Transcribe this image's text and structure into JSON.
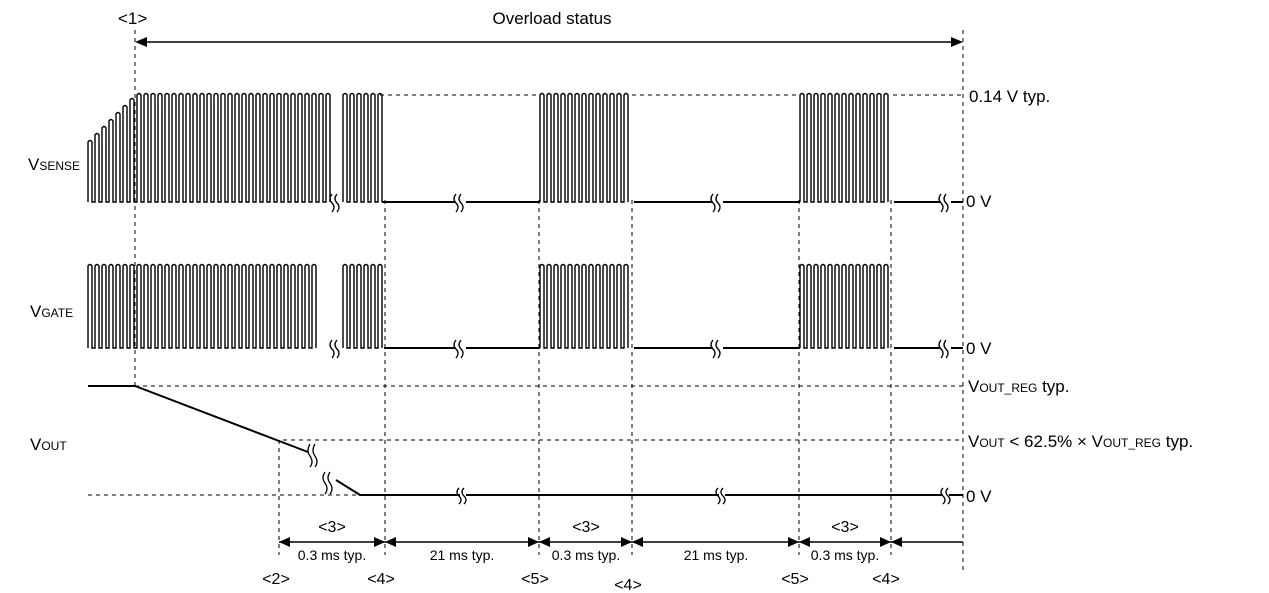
{
  "title": "Overload status",
  "markers": {
    "m1": "<1>",
    "m2": "<2>",
    "m3": "<3>",
    "m4": "<4>",
    "m5": "<5>"
  },
  "signals": {
    "vsense": {
      "main": "V",
      "sub": "SENSE"
    },
    "vgate": {
      "main": "V",
      "sub": "GATE"
    },
    "vout": {
      "main": "V",
      "sub": "OUT"
    }
  },
  "levels": {
    "vsense_high": "0.14 V typ.",
    "zero": "0 V",
    "vout_reg_main": "V",
    "vout_reg_sub": "OUT_REG",
    "vout_reg_suffix": " typ.",
    "threshold_main": "V",
    "threshold_sub1": "OUT",
    "threshold_mid": " < 62.5% × V",
    "threshold_sub2": "OUT_REG",
    "threshold_suffix": " typ."
  },
  "timing": {
    "t_on": "0.3 ms typ.",
    "t_off": "21 ms typ."
  }
}
